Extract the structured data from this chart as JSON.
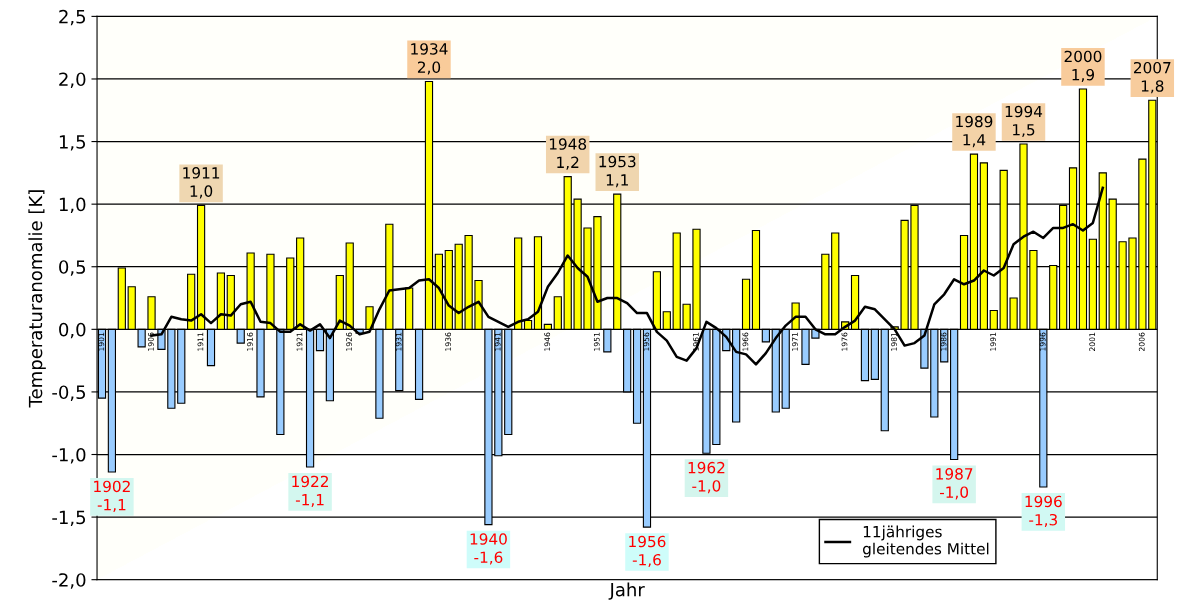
{
  "chart_data": {
    "type": "bar",
    "xlabel": "Jahr",
    "ylabel": "Temperaturanomalie [K]",
    "x": [
      1901,
      1902,
      1903,
      1904,
      1905,
      1906,
      1907,
      1908,
      1909,
      1910,
      1911,
      1912,
      1913,
      1914,
      1915,
      1916,
      1917,
      1918,
      1919,
      1920,
      1921,
      1922,
      1923,
      1924,
      1925,
      1926,
      1927,
      1928,
      1929,
      1930,
      1931,
      1932,
      1933,
      1934,
      1935,
      1936,
      1937,
      1938,
      1939,
      1940,
      1941,
      1942,
      1943,
      1944,
      1945,
      1946,
      1947,
      1948,
      1949,
      1950,
      1951,
      1952,
      1953,
      1954,
      1955,
      1956,
      1957,
      1958,
      1959,
      1960,
      1961,
      1962,
      1963,
      1964,
      1965,
      1966,
      1967,
      1968,
      1969,
      1970,
      1971,
      1972,
      1973,
      1974,
      1975,
      1976,
      1977,
      1978,
      1979,
      1980,
      1981,
      1982,
      1983,
      1984,
      1985,
      1986,
      1987,
      1988,
      1989,
      1990,
      1991,
      1992,
      1993,
      1994,
      1995,
      1996,
      1997,
      1998,
      1999,
      2000,
      2001,
      2002,
      2003,
      2004,
      2005,
      2006,
      2007
    ],
    "xlim": [
      1900.5,
      2007.5
    ],
    "xticks": [
      1901,
      1906,
      1911,
      1916,
      1921,
      1926,
      1931,
      1936,
      1941,
      1946,
      1951,
      1956,
      1961,
      1966,
      1971,
      1976,
      1981,
      1986,
      1991,
      1996,
      2001,
      2006
    ],
    "ylim": [
      -2,
      2.5
    ],
    "yticks": [
      {
        "value": -2,
        "label": "-2,0"
      },
      {
        "value": -1.5,
        "label": "-1,5"
      },
      {
        "value": -1,
        "label": "-1,0"
      },
      {
        "value": -0.5,
        "label": "-0,5"
      },
      {
        "value": 0,
        "label": "0,0"
      },
      {
        "value": 0.5,
        "label": "0,5"
      },
      {
        "value": 1,
        "label": "1,0"
      },
      {
        "value": 1.5,
        "label": "1,5"
      },
      {
        "value": 2,
        "label": "2,0"
      },
      {
        "value": 2.5,
        "label": "2,5"
      }
    ],
    "grid": "y",
    "legend": "bottom right",
    "series": [
      {
        "values": [
          -0.55,
          -1.14,
          0.49,
          0.34,
          -0.14,
          0.26,
          -0.16,
          -0.63,
          -0.59,
          0.44,
          0.99,
          -0.29,
          0.45,
          0.43,
          -0.11,
          0.61,
          -0.54,
          0.6,
          -0.84,
          0.57,
          0.73,
          -1.1,
          -0.17,
          -0.57,
          0.43,
          0.69,
          -0.03,
          0.18,
          -0.71,
          0.84,
          -0.49,
          0.33,
          -0.56,
          1.98,
          0.6,
          0.63,
          0.68,
          0.75,
          0.39,
          -1.56,
          -1.01,
          -0.84,
          0.73,
          0.07,
          0.74,
          0.04,
          0.26,
          1.22,
          1.04,
          0.81,
          0.9,
          -0.18,
          1.08,
          -0.5,
          -0.75,
          -1.58,
          0.46,
          0.14,
          0.77,
          0.2,
          0.8,
          -0.99,
          -0.92,
          -0.17,
          -0.74,
          0.4,
          0.79,
          -0.1,
          -0.66,
          -0.63,
          0.21,
          -0.28,
          -0.07,
          0.6,
          0.77,
          0.06,
          0.43,
          -0.41,
          -0.4,
          -0.81,
          0.02,
          0.87,
          0.99,
          -0.31,
          -0.7,
          -0.26,
          -1.04,
          0.75,
          1.4,
          1.33,
          0.15,
          1.27,
          0.25,
          1.48,
          0.63,
          -1.26,
          0.51,
          0.99,
          1.29,
          1.92,
          0.72,
          1.25,
          1.04,
          0.7,
          0.73,
          1.36,
          1.83
        ],
        "colors": [
          "#99ccff",
          "#99ccff",
          "#ffff00",
          "#ffff00",
          "#99ccff",
          "#ffff00",
          "#99ccff",
          "#99ccff",
          "#99ccff",
          "#ffff00",
          "#ffff00",
          "#99ccff",
          "#ffff00",
          "#ffff00",
          "#99ccff",
          "#ffff00",
          "#99ccff",
          "#ffff00",
          "#99ccff",
          "#ffff00",
          "#ffff00",
          "#99ccff",
          "#99ccff",
          "#99ccff",
          "#ffff00",
          "#ffff00",
          "#99ccff",
          "#ffff00",
          "#99ccff",
          "#ffff00",
          "#99ccff",
          "#ffff00",
          "#99ccff",
          "#ffff00",
          "#ffff00",
          "#ffff00",
          "#ffff00",
          "#ffff00",
          "#ffff00",
          "#99ccff",
          "#99ccff",
          "#99ccff",
          "#ffff00",
          "#ffff00",
          "#ffff00",
          "#ffff00",
          "#ffff00",
          "#ffff00",
          "#ffff00",
          "#ffff00",
          "#ffff00",
          "#99ccff",
          "#ffff00",
          "#99ccff",
          "#99ccff",
          "#99ccff",
          "#ffff00",
          "#ffff00",
          "#ffff00",
          "#ffff00",
          "#ffff00",
          "#99ccff",
          "#99ccff",
          "#99ccff",
          "#99ccff",
          "#ffff00",
          "#ffff00",
          "#99ccff",
          "#99ccff",
          "#99ccff",
          "#ffff00",
          "#99ccff",
          "#99ccff",
          "#ffff00",
          "#ffff00",
          "#ffff00",
          "#ffff00",
          "#99ccff",
          "#99ccff",
          "#99ccff",
          "#ffff00",
          "#ffff00",
          "#ffff00",
          "#99ccff",
          "#99ccff",
          "#99ccff",
          "#99ccff",
          "#ffff00",
          "#ffff00",
          "#ffff00",
          "#ffff00",
          "#ffff00",
          "#ffff00",
          "#ffff00",
          "#ffff00",
          "#99ccff",
          "#ffff00",
          "#ffff00",
          "#ffff00",
          "#ffff00",
          "#ffff00",
          "#ffff00",
          "#ffff00",
          "#ffff00",
          "#ffff00",
          "#ffff00",
          "#ffff00"
        ]
      },
      {
        "type": "line",
        "name": "11jähriges\ngleitendes Mittel",
        "color": "#000000",
        "x": [
          1906,
          1907,
          1908,
          1909,
          1910,
          1911,
          1912,
          1913,
          1914,
          1915,
          1916,
          1917,
          1918,
          1919,
          1920,
          1921,
          1922,
          1923,
          1924,
          1925,
          1926,
          1927,
          1928,
          1929,
          1930,
          1931,
          1932,
          1933,
          1934,
          1935,
          1936,
          1937,
          1938,
          1939,
          1940,
          1941,
          1942,
          1943,
          1944,
          1945,
          1946,
          1947,
          1948,
          1949,
          1950,
          1951,
          1952,
          1953,
          1954,
          1955,
          1956,
          1957,
          1958,
          1959,
          1960,
          1961,
          1962,
          1963,
          1964,
          1965,
          1966,
          1967,
          1968,
          1969,
          1970,
          1971,
          1972,
          1973,
          1974,
          1975,
          1976,
          1977,
          1978,
          1979,
          1980,
          1981,
          1982,
          1983,
          1984,
          1985,
          1986,
          1987,
          1988,
          1989,
          1990,
          1991,
          1992,
          1993,
          1994,
          1995,
          1996,
          1997,
          1998,
          1999,
          2000,
          2001,
          2002
        ],
        "values": [
          -0.05,
          -0.04,
          0.1,
          0.08,
          0.07,
          0.12,
          0.05,
          0.12,
          0.11,
          0.2,
          0.22,
          0.06,
          0.05,
          -0.02,
          -0.02,
          0.04,
          -0.01,
          0.04,
          -0.07,
          0.07,
          0.03,
          -0.04,
          -0.02,
          0.16,
          0.31,
          0.32,
          0.33,
          0.39,
          0.4,
          0.33,
          0.19,
          0.13,
          0.18,
          0.22,
          0.1,
          0.06,
          0.02,
          0.06,
          0.08,
          0.14,
          0.34,
          0.45,
          0.59,
          0.49,
          0.42,
          0.22,
          0.25,
          0.25,
          0.21,
          0.13,
          0.13,
          -0.02,
          -0.09,
          -0.22,
          -0.25,
          -0.15,
          0.06,
          0.01,
          -0.06,
          -0.18,
          -0.2,
          -0.28,
          -0.19,
          -0.07,
          0.03,
          0.1,
          0.1,
          0.0,
          -0.04,
          -0.04,
          0.02,
          0.07,
          0.18,
          0.16,
          0.08,
          0.0,
          -0.13,
          -0.11,
          -0.05,
          0.2,
          0.28,
          0.4,
          0.36,
          0.39,
          0.47,
          0.43,
          0.49,
          0.68,
          0.74,
          0.78,
          0.73,
          0.81,
          0.81,
          0.84,
          0.79,
          0.85,
          1.13
        ]
      }
    ],
    "annotations": [
      {
        "text": "1902\n-1,1",
        "x": 1902,
        "y": -1.14
      },
      {
        "text": "1911\n1,0",
        "x": 1911,
        "y": 0.99
      },
      {
        "text": "1922\n-1,1",
        "x": 1922,
        "y": -1.1
      },
      {
        "text": "1934\n2,0",
        "x": 1934,
        "y": 1.98
      },
      {
        "text": "1940\n-1,6",
        "x": 1940,
        "y": -1.56
      },
      {
        "text": "1948\n1,2",
        "x": 1948,
        "y": 1.22
      },
      {
        "text": "1953\n1,1",
        "x": 1953,
        "y": 1.08
      },
      {
        "text": "1956\n-1,6",
        "x": 1956,
        "y": -1.58
      },
      {
        "text": "1962\n-1,0",
        "x": 1962,
        "y": -0.99
      },
      {
        "text": "1987\n-1,0",
        "x": 1987,
        "y": -1.04
      },
      {
        "text": "1989\n1,4",
        "x": 1989,
        "y": 1.4
      },
      {
        "text": "1994\n1,5",
        "x": 1994,
        "y": 1.48
      },
      {
        "text": "1996\n-1,3",
        "x": 1996,
        "y": -1.26
      },
      {
        "text": "2000\n1,9",
        "x": 2000,
        "y": 1.92
      },
      {
        "text": "2007\n1,8",
        "x": 2007,
        "y": 1.83
      }
    ]
  }
}
